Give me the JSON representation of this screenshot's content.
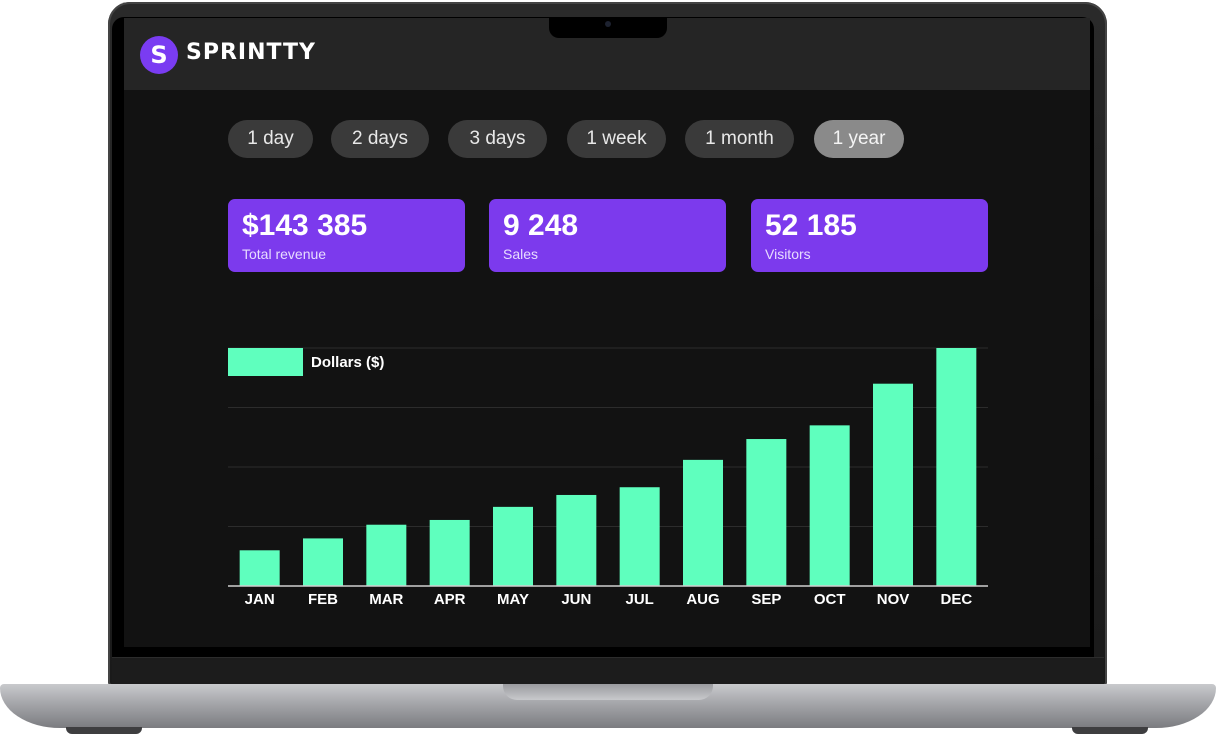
{
  "app": {
    "logo_letter": "S",
    "brand": "SPRINTTY"
  },
  "ranges": [
    {
      "label": "1 day",
      "active": false
    },
    {
      "label": "2 days",
      "active": false
    },
    {
      "label": "3 days",
      "active": false
    },
    {
      "label": "1 week",
      "active": false
    },
    {
      "label": "1 month",
      "active": false
    },
    {
      "label": "1 year",
      "active": true
    }
  ],
  "stats": [
    {
      "value": "$143 385",
      "label": "Total revenue"
    },
    {
      "value": "9 248",
      "label": "Sales"
    },
    {
      "value": "52 185",
      "label": "Visitors"
    }
  ],
  "colors": {
    "accent": "#7c3aed",
    "bar": "#5fffbe",
    "background": "#121212"
  },
  "chart_data": {
    "type": "bar",
    "categories": [
      "JAN",
      "FEB",
      "MAR",
      "APR",
      "MAY",
      "JUN",
      "JUL",
      "AUG",
      "SEP",
      "OCT",
      "NOV",
      "DEC"
    ],
    "series": [
      {
        "name": "Dollars ($)",
        "values": [
          6,
          8,
          10.3,
          11.1,
          13.3,
          15.3,
          16.6,
          21.2,
          24.7,
          27,
          34,
          40
        ]
      }
    ],
    "ylim": [
      0,
      40
    ],
    "grid": true,
    "legend": "top-left",
    "xlabel": "",
    "ylabel": ""
  }
}
